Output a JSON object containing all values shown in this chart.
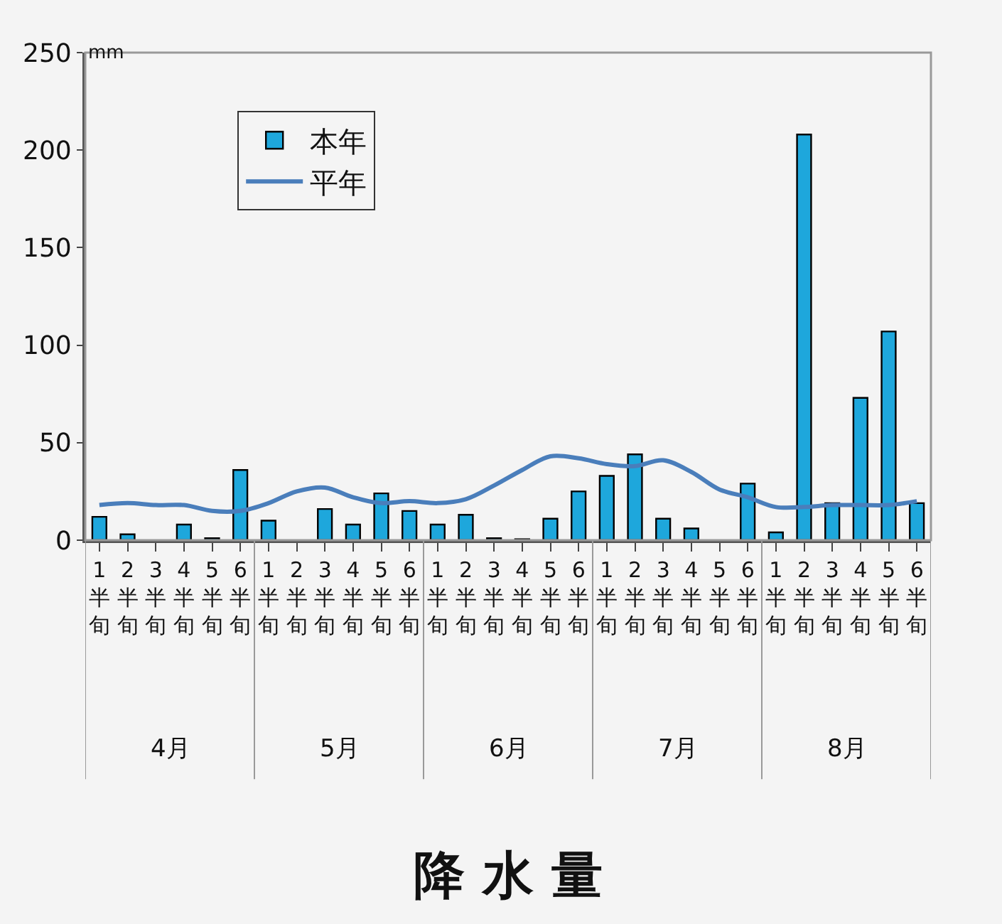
{
  "chart_data": {
    "type": "bar",
    "title": "降 水 量",
    "ylabel": "mm",
    "categories": [
      "1半旬",
      "2半旬",
      "3半旬",
      "4半旬",
      "5半旬",
      "6半旬",
      "1半旬",
      "2半旬",
      "3半旬",
      "4半旬",
      "5半旬",
      "6半旬",
      "1半旬",
      "2半旬",
      "3半旬",
      "4半旬",
      "5半旬",
      "6半旬",
      "1半旬",
      "2半旬",
      "3半旬",
      "4半旬",
      "5半旬",
      "6半旬",
      "1半旬",
      "2半旬",
      "3半旬",
      "4半旬",
      "5半旬",
      "6半旬"
    ],
    "annotations": [
      "4月",
      "5月",
      "6月",
      "7月",
      "8月"
    ],
    "series": [
      {
        "name": "本年",
        "color": "#1ea7dc",
        "values": [
          12,
          3,
          0,
          8,
          1,
          36,
          10,
          0,
          16,
          8,
          24,
          15,
          8,
          13,
          1,
          0.5,
          11,
          25,
          33,
          44,
          11,
          6,
          0,
          29,
          4,
          208,
          19,
          73,
          107,
          19
        ]
      },
      {
        "name": "平年",
        "type": "line",
        "color": "#4a7ebb",
        "values": [
          18,
          19,
          18,
          18,
          15,
          15,
          19,
          25,
          27,
          22,
          19,
          20,
          19,
          21,
          28,
          36,
          43,
          42,
          39,
          38,
          41,
          35,
          26,
          22,
          17,
          17,
          18,
          18,
          18,
          20
        ]
      }
    ],
    "ylim": [
      0,
      250
    ],
    "yticks": [
      0,
      50,
      100,
      150,
      200,
      250
    ],
    "grid": false,
    "legend": "top left",
    "marker": "none",
    "line_style": "solid"
  }
}
